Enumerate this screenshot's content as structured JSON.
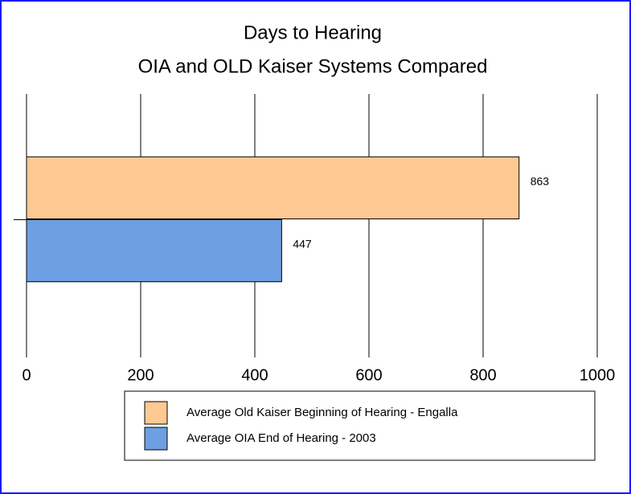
{
  "chart_data": {
    "type": "bar",
    "orientation": "horizontal",
    "title": [
      "Days to Hearing",
      "OIA and OLD Kaiser Systems Compared"
    ],
    "categories": [
      null
    ],
    "series": [
      {
        "name": "Average Old Kaiser Beginning of Hearing - Engalla",
        "color": "#ffc993",
        "values": [
          863
        ]
      },
      {
        "name": "Average OIA End of Hearing - 2003",
        "color": "#6d9fe2",
        "values": [
          447
        ]
      }
    ],
    "xlim": [
      0,
      1000
    ],
    "xticks": [
      0,
      200,
      400,
      600,
      800,
      1000
    ],
    "grid": true,
    "legend": "bottom"
  }
}
